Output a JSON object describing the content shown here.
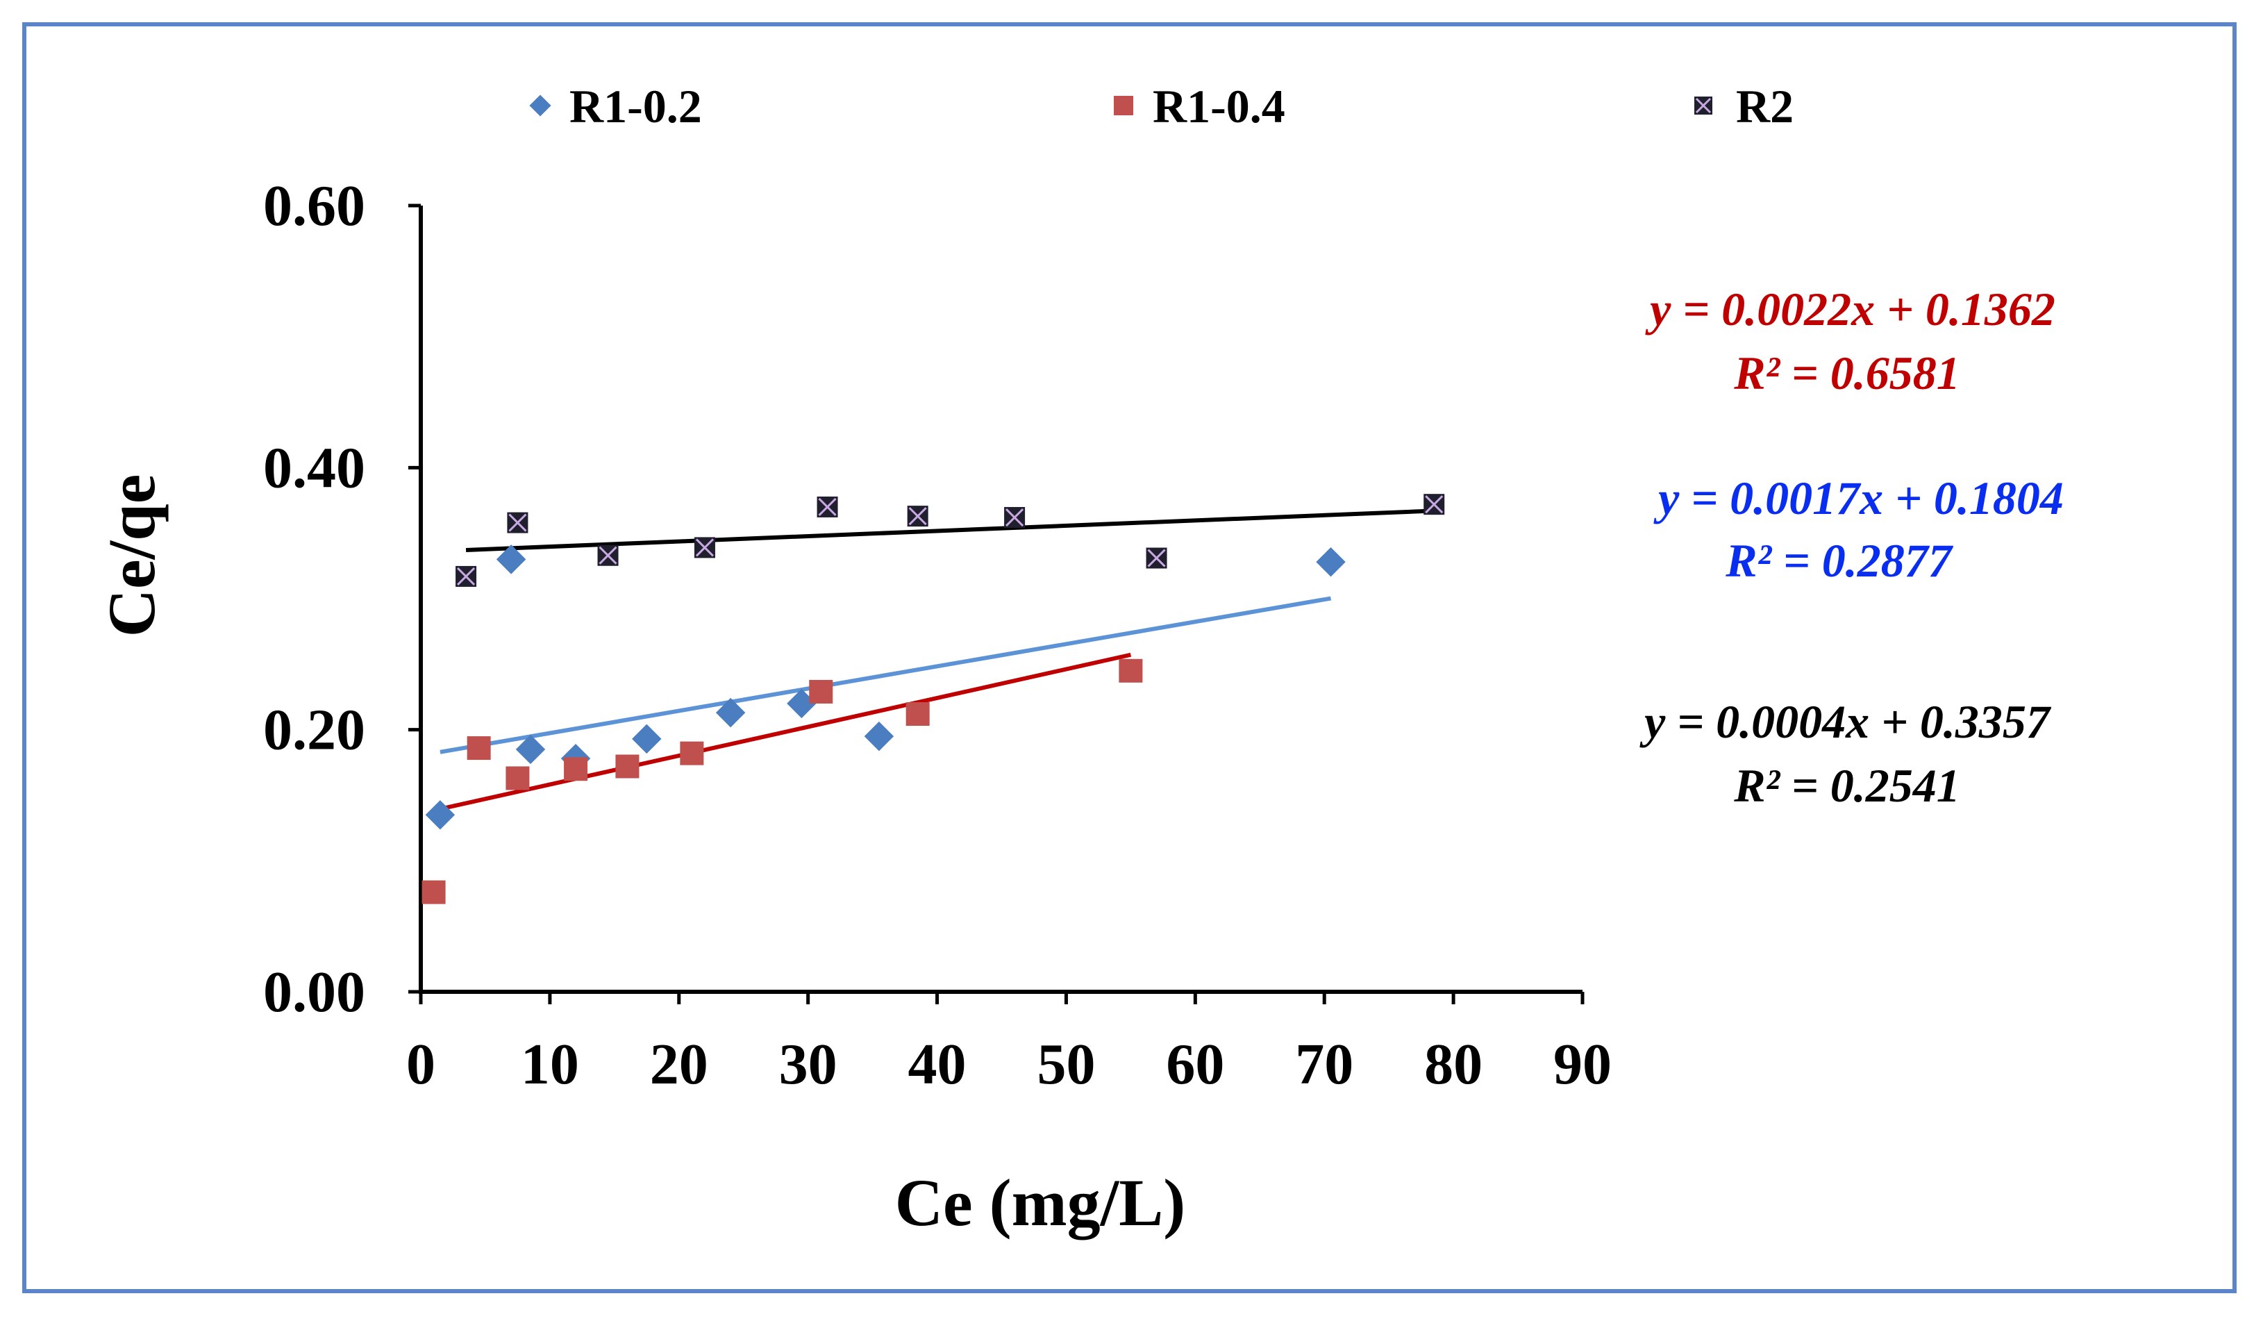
{
  "chart_data": {
    "type": "scatter",
    "title": "",
    "xlabel": "Ce (mg/L)",
    "ylabel": "Ce/qe",
    "xlim": [
      0,
      90
    ],
    "ylim": [
      0,
      0.6
    ],
    "x_ticks": [
      "0",
      "10",
      "20",
      "30",
      "40",
      "50",
      "60",
      "70",
      "80",
      "90"
    ],
    "y_ticks": [
      "0.00",
      "0.20",
      "0.40",
      "0.60"
    ],
    "legend_position": "top",
    "series": [
      {
        "name": "R1-0.2",
        "marker": "diamond",
        "color": "#4a7ec0",
        "trend_color": "#5b93d6",
        "x": [
          1.5,
          7,
          8.5,
          12,
          17.5,
          24,
          29.5,
          35.5,
          70.5
        ],
        "y": [
          0.135,
          0.33,
          0.185,
          0.178,
          0.193,
          0.213,
          0.22,
          0.195,
          0.328
        ],
        "trendline": {
          "slope": 0.0017,
          "intercept": 0.1804,
          "x_range": [
            1.5,
            70.5
          ]
        },
        "equation": "y = 0.0017x + 0.1804",
        "r2": "R² = 0.2877",
        "equation_color": "#0a2ef0"
      },
      {
        "name": "R1-0.4",
        "marker": "square",
        "color": "#c0504d",
        "trend_color": "#c00000",
        "x": [
          1,
          4.5,
          7.5,
          12,
          16,
          21,
          31,
          38.5,
          55
        ],
        "y": [
          0.076,
          0.186,
          0.163,
          0.17,
          0.172,
          0.182,
          0.229,
          0.212,
          0.245
        ],
        "trendline": {
          "slope": 0.0022,
          "intercept": 0.1362,
          "x_range": [
            1,
            55
          ]
        },
        "equation": "y = 0.0022x + 0.1362",
        "r2": "R² = 0.6581",
        "equation_color": "#c00000"
      },
      {
        "name": "R2",
        "marker": "x-square",
        "color": "#1f1f2e",
        "trend_color": "#000000",
        "x": [
          3.5,
          7.5,
          14.5,
          22,
          31.5,
          38.5,
          46,
          57,
          78.5
        ],
        "y": [
          0.317,
          0.358,
          0.333,
          0.339,
          0.37,
          0.363,
          0.362,
          0.331,
          0.372
        ],
        "trendline": {
          "slope": 0.0004,
          "intercept": 0.3357,
          "x_range": [
            3.5,
            78.5
          ]
        },
        "equation": "y = 0.0004x + 0.3357",
        "r2": "R² = 0.2541",
        "equation_color": "#000000"
      }
    ]
  }
}
